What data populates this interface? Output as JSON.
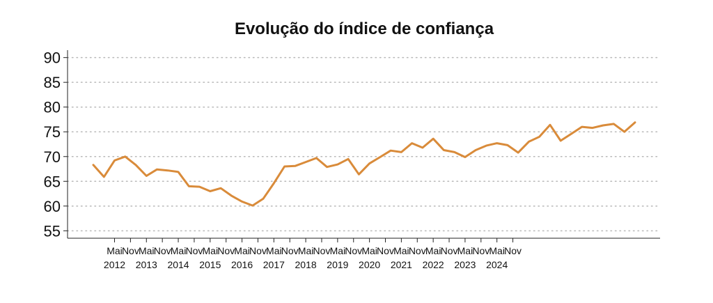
{
  "chart_data": {
    "type": "line",
    "title": "Evolução do índice de confiança",
    "xlabel": "",
    "ylabel": "",
    "ylim": [
      53.5,
      91.5
    ],
    "y_ticks": [
      55,
      60,
      65,
      70,
      75,
      80,
      85,
      90
    ],
    "grid": "horizontal-dotted",
    "line_color": "#D98B3A",
    "x_tick_labels": [
      {
        "month": "Mai",
        "year": "2012",
        "idx": 2
      },
      {
        "month": "Nov",
        "year": "",
        "idx": 3.5
      },
      {
        "month": "Mai",
        "year": "2013",
        "idx": 5
      },
      {
        "month": "Nov",
        "year": "",
        "idx": 6.5
      },
      {
        "month": "Mai",
        "year": "2014",
        "idx": 8
      },
      {
        "month": "Nov",
        "year": "",
        "idx": 9.5
      },
      {
        "month": "Mai",
        "year": "2015",
        "idx": 11
      },
      {
        "month": "Nov",
        "year": "",
        "idx": 12.5
      },
      {
        "month": "Mai",
        "year": "2016",
        "idx": 14
      },
      {
        "month": "Nov",
        "year": "",
        "idx": 15.5
      },
      {
        "month": "Mai",
        "year": "2017",
        "idx": 17
      },
      {
        "month": "Nov",
        "year": "",
        "idx": 18.5
      },
      {
        "month": "Mai",
        "year": "2018",
        "idx": 20
      },
      {
        "month": "Nov",
        "year": "",
        "idx": 21.5
      },
      {
        "month": "Mai",
        "year": "2019",
        "idx": 23
      },
      {
        "month": "Nov",
        "year": "",
        "idx": 24.5
      },
      {
        "month": "Mai",
        "year": "2020",
        "idx": 26
      },
      {
        "month": "Nov",
        "year": "",
        "idx": 27.5
      },
      {
        "month": "Mai",
        "year": "2021",
        "idx": 29
      },
      {
        "month": "Nov",
        "year": "",
        "idx": 30.5
      },
      {
        "month": "Mai",
        "year": "2022",
        "idx": 32
      },
      {
        "month": "Nov",
        "year": "",
        "idx": 33.5
      },
      {
        "month": "Mai",
        "year": "2023",
        "idx": 35
      },
      {
        "month": "Nov",
        "year": "",
        "idx": 36.5
      },
      {
        "month": "Mai",
        "year": "2024",
        "idx": 38
      },
      {
        "month": "Nov",
        "year": "",
        "idx": 39.5
      }
    ],
    "series": [
      {
        "values": [
          68.3,
          65.9,
          69.2,
          70.0,
          68.3,
          66.1,
          67.4,
          67.2,
          66.9,
          64.0,
          63.9,
          63.0,
          63.6,
          62.1,
          60.9,
          60.1,
          61.5,
          64.6,
          68.0,
          68.1,
          68.9,
          69.7,
          67.9,
          68.4,
          69.5,
          66.4,
          68.6,
          69.9,
          71.2,
          70.9,
          72.7,
          71.8,
          73.6,
          71.3,
          70.9,
          69.9,
          71.3,
          72.2,
          72.7,
          72.3,
          70.8,
          73.0,
          74.0,
          76.4,
          73.2,
          74.6,
          76.0,
          75.8,
          76.3,
          76.6,
          75.0,
          76.9
        ]
      }
    ]
  }
}
